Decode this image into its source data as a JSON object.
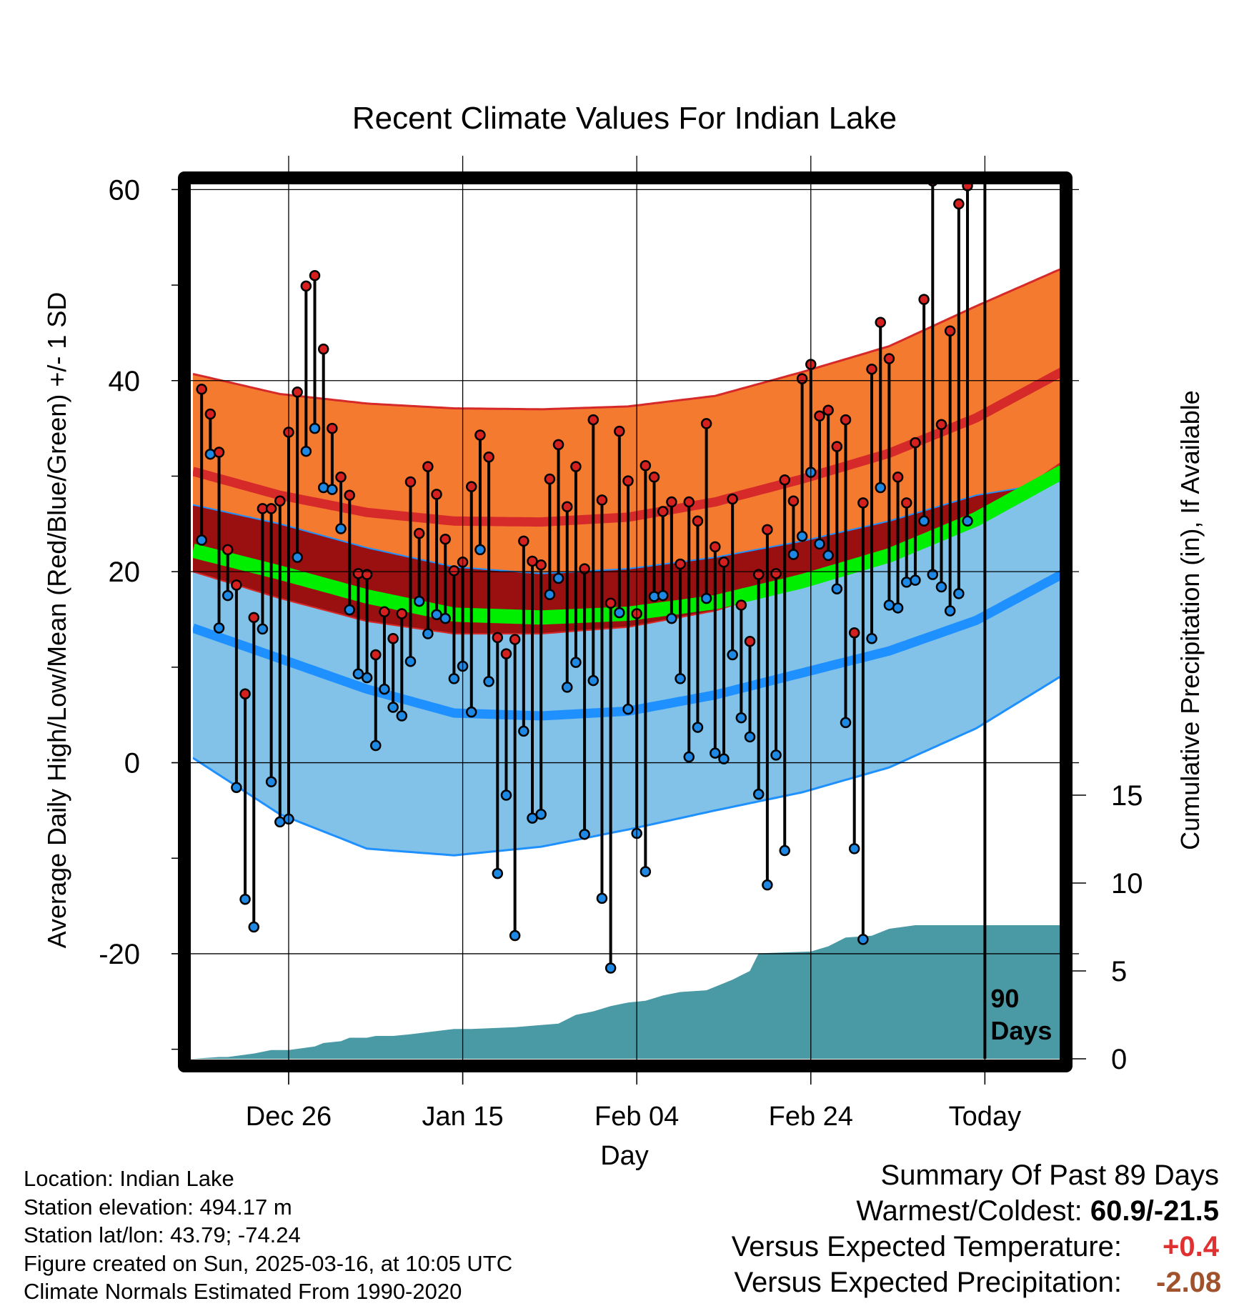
{
  "title": "Recent Climate Values For Indian Lake",
  "xlabel": "Day",
  "ylabel_left": "Average Daily High/Low/Mean (Red/Blue/Green) +/- 1 SD",
  "ylabel_right": "Cumulative Precipitation (in), If Available",
  "window_label_line1": "90",
  "window_label_line2": "Days",
  "info": {
    "location": "Location: Indian Lake",
    "elevation": "Station elevation: 494.17 m",
    "latlon": "Station lat/lon: 43.79; -74.24",
    "created": "Figure created on Sun, 2025-03-16, at 10:05 UTC",
    "normals": "Climate Normals Estimated From 1990-2020"
  },
  "summary": {
    "heading": "Summary Of Past 89 Days",
    "warm_cold_label": "Warmest/Coldest:",
    "warm_cold_value": "60.9/-21.5",
    "temp_label": "Versus Expected Temperature:",
    "temp_value": "+0.4",
    "precip_label": "Versus Expected Precipitation:",
    "precip_value": "-2.08"
  },
  "colors": {
    "high_band": "#f47a30",
    "high_line": "#d62a2a",
    "low_band": "#82c2e8",
    "low_line": "#1e90ff",
    "overlap": "#9a1010",
    "mean_line": "#00ee00",
    "precip_fill": "#4a9aa5",
    "high_dot": "#d62020",
    "low_dot": "#1e88e5",
    "temp_value": "#e03030",
    "precip_value": "#a0522d"
  },
  "chart_data": {
    "type": "line",
    "x_ticks": [
      "Dec 26",
      "Jan 15",
      "Feb 04",
      "Feb 24",
      "Today"
    ],
    "x_tick_days": [
      10,
      30,
      50,
      70,
      90
    ],
    "x_range": [
      -1,
      99
    ],
    "y_left_range": [
      -31,
      61
    ],
    "y_left_ticks": [
      -20,
      0,
      20,
      40,
      60
    ],
    "y_right_ticks": [
      0,
      5,
      10,
      15
    ],
    "normals": {
      "days": [
        -1,
        9,
        19,
        29,
        39,
        49,
        59,
        69,
        79,
        89,
        99
      ],
      "high_mean": [
        30.5,
        28.0,
        26.2,
        25.3,
        25.2,
        25.7,
        27.3,
        29.7,
        32.4,
        36.1,
        41.0
      ],
      "high_sd_upper": [
        40.7,
        38.6,
        37.6,
        37.1,
        37.0,
        37.3,
        38.4,
        40.9,
        43.6,
        47.8,
        51.8
      ],
      "high_sd_lower": [
        20.0,
        17.2,
        14.8,
        13.5,
        13.5,
        14.2,
        15.9,
        18.8,
        21.6,
        25.1,
        31.6
      ],
      "mean": [
        22.2,
        19.9,
        17.4,
        15.5,
        15.2,
        15.6,
        16.8,
        19.0,
        21.7,
        25.5,
        30.5
      ],
      "low_mean": [
        14.1,
        10.9,
        7.7,
        5.2,
        4.9,
        5.4,
        7.1,
        9.4,
        11.7,
        14.9,
        19.8
      ],
      "low_sd_upper": [
        27.0,
        25.0,
        22.5,
        20.5,
        19.8,
        20.3,
        21.5,
        23.2,
        25.3,
        28.0,
        29.5
      ],
      "low_sd_lower": [
        0.5,
        -5.4,
        -9.0,
        -9.7,
        -8.8,
        -7.0,
        -5.0,
        -3.1,
        -0.5,
        3.6,
        9.2
      ]
    },
    "daily": {
      "high": [
        39.1,
        36.5,
        32.5,
        22.3,
        18.6,
        7.2,
        15.2,
        26.6,
        26.6,
        27.4,
        34.6,
        38.8,
        49.9,
        51.0,
        43.3,
        35.0,
        29.9,
        28.0,
        19.8,
        19.7,
        11.3,
        15.8,
        13.0,
        15.6,
        29.4,
        24.0,
        31.0,
        28.1,
        23.4,
        20.1,
        21.0,
        28.9,
        34.3,
        32.0,
        13.1,
        11.4,
        12.9,
        23.2,
        21.1,
        20.7,
        29.7,
        33.3,
        26.8,
        31.0,
        20.3,
        35.9,
        27.5,
        16.7,
        34.7,
        29.5,
        15.6,
        31.1,
        29.9,
        26.3,
        27.3,
        20.8,
        27.3,
        25.3,
        35.5,
        22.6,
        21.0,
        27.6,
        16.5,
        12.7,
        19.7,
        24.4,
        19.8,
        29.6,
        27.4,
        40.2,
        41.7,
        36.3,
        36.9,
        33.1,
        35.9,
        13.6,
        27.2,
        41.2,
        46.1,
        42.3,
        29.9,
        27.2,
        33.5,
        48.5,
        60.9,
        35.4,
        45.2,
        58.5,
        60.4
      ],
      "low": [
        23.3,
        32.3,
        14.1,
        17.5,
        -2.6,
        -14.3,
        -17.2,
        14.0,
        -2.0,
        -6.2,
        -5.9,
        21.5,
        32.6,
        35.0,
        28.8,
        28.6,
        24.5,
        16.0,
        9.3,
        8.9,
        1.8,
        7.7,
        5.8,
        4.9,
        10.6,
        16.9,
        13.5,
        15.5,
        15.1,
        8.8,
        10.1,
        5.3,
        22.3,
        8.5,
        -11.6,
        -3.4,
        -18.1,
        3.3,
        -5.8,
        -5.4,
        17.6,
        19.3,
        7.9,
        10.5,
        -7.5,
        8.6,
        -14.2,
        -21.5,
        15.7,
        5.6,
        -7.4,
        -11.4,
        17.4,
        17.5,
        15.1,
        8.8,
        0.6,
        3.7,
        17.2,
        1.0,
        0.4,
        11.3,
        4.7,
        2.7,
        -3.3,
        -12.8,
        0.8,
        -9.2,
        21.8,
        23.7,
        30.4,
        22.9,
        21.7,
        18.2,
        4.2,
        -9.0,
        -18.5,
        13.0,
        28.8,
        16.5,
        16.2,
        18.9,
        19.1,
        25.3,
        19.7,
        18.4,
        15.9,
        17.7,
        25.3
      ]
    },
    "precip_cumulative": {
      "days": [
        -1,
        2,
        3,
        6,
        8,
        10,
        13,
        14,
        16,
        17,
        19,
        20,
        22,
        24,
        29,
        31,
        36,
        41,
        43,
        45,
        47,
        49,
        51,
        53,
        55,
        58,
        60,
        61,
        63,
        64,
        70,
        72,
        74,
        77,
        79,
        82,
        99
      ],
      "values": [
        0.0,
        0.1,
        0.1,
        0.3,
        0.5,
        0.5,
        0.7,
        0.9,
        1.0,
        1.2,
        1.2,
        1.3,
        1.3,
        1.4,
        1.7,
        1.7,
        1.8,
        2.0,
        2.5,
        2.7,
        3.0,
        3.2,
        3.3,
        3.6,
        3.8,
        3.9,
        4.3,
        4.5,
        5.0,
        6.0,
        6.1,
        6.4,
        6.9,
        7.0,
        7.4,
        7.6,
        7.6
      ]
    }
  }
}
